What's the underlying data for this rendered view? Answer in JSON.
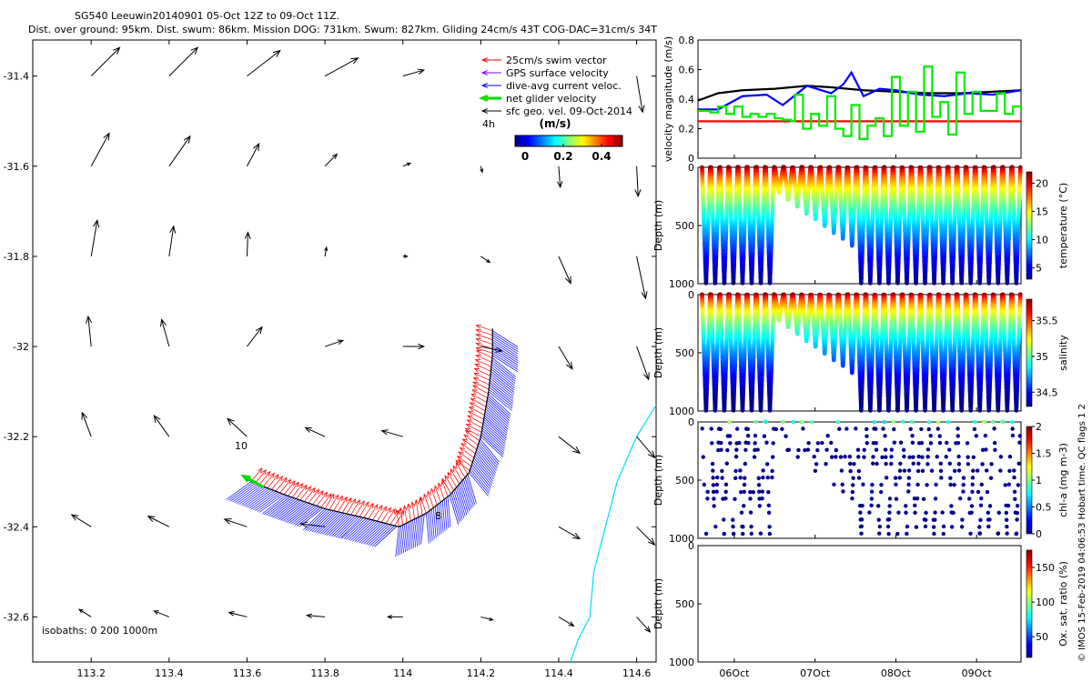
{
  "header": {
    "line1": "SG540 Leeuwin20140901 05-Oct 12Z to 09-Oct 11Z.",
    "line2": "Dist. over ground: 95km. Dist. swum: 86km. Mission DOG: 731km. Swum: 827km. Gliding 24cm/s 43T COG-DAC=31cm/s 34T"
  },
  "credit": "© IMOS 15-Feb-2019 04:06:53 Hobart time. QC flags 1  2",
  "colors": {
    "background": "#ffffff",
    "axis": "#000000",
    "swim": "#ff0000",
    "gps": "#8000ff",
    "dac": "#0000ff",
    "net": "#00dd00",
    "coast": "#00ddff",
    "geo": "#000000"
  },
  "chart_data": [
    {
      "type": "quiver-map",
      "xlim": [
        113.05,
        114.65
      ],
      "ylim": [
        -32.7,
        -31.32
      ],
      "xticks": [
        113.2,
        113.4,
        113.6,
        113.8,
        114,
        114.2,
        114.4,
        114.6
      ],
      "xtick_labels": [
        "113.2",
        "113.4",
        "113.6",
        "113.8",
        "114",
        "114.2",
        "114.4",
        "114.6"
      ],
      "yticks": [
        -31.4,
        -31.6,
        -31.8,
        -32,
        -32.2,
        -32.4,
        -32.6
      ],
      "ytick_labels": [
        "-31.4",
        "-31.6",
        "-31.8",
        "-32",
        "-32.2",
        "-32.4",
        "-32.6"
      ],
      "legend": {
        "items": [
          {
            "label": "25cm/s swim vector",
            "color": "#ff0000"
          },
          {
            "label": "GPS surface velocity",
            "color": "#8000ff"
          },
          {
            "label": "dive-avg current veloc.",
            "color": "#0000ff"
          },
          {
            "label": "net glider velocity",
            "color": "#00dd00"
          },
          {
            "label": "sfc geo. vel. 09-Oct-2014",
            "color": "#000000"
          }
        ],
        "scale_label": "4h",
        "colorbar_title": "(m/s)",
        "colorbar_ticks": [
          "0",
          "0.2",
          "0.4"
        ]
      },
      "isobaths_label": "isobaths: 0   200  1000m",
      "track_labels": [
        "10",
        "8"
      ],
      "geo_vectors": [
        {
          "lon": 113.2,
          "lat": -31.4,
          "u": 0.095,
          "v": 0.095
        },
        {
          "lon": 113.4,
          "lat": -31.4,
          "u": 0.095,
          "v": 0.095
        },
        {
          "lon": 113.6,
          "lat": -31.4,
          "u": 0.11,
          "v": 0.085
        },
        {
          "lon": 113.8,
          "lat": -31.4,
          "u": 0.11,
          "v": 0.06
        },
        {
          "lon": 114,
          "lat": -31.4,
          "u": 0.07,
          "v": 0.02
        },
        {
          "lon": 114.6,
          "lat": -31.4,
          "u": 0.02,
          "v": -0.12
        },
        {
          "lon": 113.2,
          "lat": -31.6,
          "u": 0.06,
          "v": 0.11
        },
        {
          "lon": 113.4,
          "lat": -31.6,
          "u": 0.07,
          "v": 0.1
        },
        {
          "lon": 113.6,
          "lat": -31.6,
          "u": 0.04,
          "v": 0.075
        },
        {
          "lon": 113.8,
          "lat": -31.6,
          "u": 0.04,
          "v": 0.04
        },
        {
          "lon": 114,
          "lat": -31.6,
          "u": 0.025,
          "v": 0.01
        },
        {
          "lon": 114.2,
          "lat": -31.6,
          "u": 0.005,
          "v": -0.02
        },
        {
          "lon": 114.4,
          "lat": -31.6,
          "u": 0.005,
          "v": -0.07
        },
        {
          "lon": 114.6,
          "lat": -31.6,
          "u": 0.005,
          "v": -0.1
        },
        {
          "lon": 113.2,
          "lat": -31.8,
          "u": 0.02,
          "v": 0.12
        },
        {
          "lon": 113.4,
          "lat": -31.8,
          "u": 0.015,
          "v": 0.1
        },
        {
          "lon": 113.6,
          "lat": -31.8,
          "u": 0.003,
          "v": 0.08
        },
        {
          "lon": 113.8,
          "lat": -31.8,
          "u": 0.005,
          "v": 0.03
        },
        {
          "lon": 114,
          "lat": -31.8,
          "u": 0.015,
          "v": 0.0
        },
        {
          "lon": 114.2,
          "lat": -31.8,
          "u": 0.03,
          "v": -0.02
        },
        {
          "lon": 114.4,
          "lat": -31.8,
          "u": 0.04,
          "v": -0.09
        },
        {
          "lon": 114.6,
          "lat": -31.8,
          "u": 0.03,
          "v": -0.14
        },
        {
          "lon": 113.2,
          "lat": -32,
          "u": -0.01,
          "v": 0.1
        },
        {
          "lon": 113.4,
          "lat": -32,
          "u": -0.025,
          "v": 0.09
        },
        {
          "lon": 113.6,
          "lat": -32,
          "u": 0.05,
          "v": 0.065
        },
        {
          "lon": 113.8,
          "lat": -32,
          "u": 0.06,
          "v": 0.02
        },
        {
          "lon": 114,
          "lat": -32,
          "u": 0.07,
          "v": 0.0
        },
        {
          "lon": 114.2,
          "lat": -32,
          "u": 0.07,
          "v": -0.015
        },
        {
          "lon": 114.4,
          "lat": -32,
          "u": 0.045,
          "v": -0.075
        },
        {
          "lon": 114.6,
          "lat": -32,
          "u": 0.04,
          "v": -0.11
        },
        {
          "lon": 113.2,
          "lat": -32.2,
          "u": -0.03,
          "v": 0.08
        },
        {
          "lon": 113.4,
          "lat": -32.2,
          "u": -0.05,
          "v": 0.07
        },
        {
          "lon": 113.6,
          "lat": -32.2,
          "u": -0.065,
          "v": 0.06
        },
        {
          "lon": 113.8,
          "lat": -32.2,
          "u": -0.065,
          "v": 0.03
        },
        {
          "lon": 114,
          "lat": -32.2,
          "u": -0.07,
          "v": 0.02
        },
        {
          "lon": 114.4,
          "lat": -32.2,
          "u": 0.07,
          "v": -0.055
        },
        {
          "lon": 114.6,
          "lat": -32.2,
          "u": 0.06,
          "v": -0.07
        },
        {
          "lon": 113.2,
          "lat": -32.4,
          "u": -0.065,
          "v": 0.04
        },
        {
          "lon": 113.4,
          "lat": -32.4,
          "u": -0.07,
          "v": 0.035
        },
        {
          "lon": 113.6,
          "lat": -32.4,
          "u": -0.075,
          "v": 0.025
        },
        {
          "lon": 113.8,
          "lat": -32.4,
          "u": -0.08,
          "v": 0.01
        },
        {
          "lon": 114.4,
          "lat": -32.4,
          "u": 0.07,
          "v": -0.04
        },
        {
          "lon": 114.6,
          "lat": -32.4,
          "u": 0.06,
          "v": -0.06
        },
        {
          "lon": 113.2,
          "lat": -32.6,
          "u": -0.04,
          "v": 0.025
        },
        {
          "lon": 113.4,
          "lat": -32.6,
          "u": -0.05,
          "v": 0.02
        },
        {
          "lon": 113.6,
          "lat": -32.6,
          "u": -0.06,
          "v": 0.015
        },
        {
          "lon": 113.8,
          "lat": -32.6,
          "u": -0.06,
          "v": 0.005
        },
        {
          "lon": 114,
          "lat": -32.6,
          "u": -0.05,
          "v": 0.0
        },
        {
          "lon": 114.2,
          "lat": -32.6,
          "u": 0.04,
          "v": -0.01
        },
        {
          "lon": 114.4,
          "lat": -32.6,
          "u": 0.05,
          "v": -0.03
        },
        {
          "lon": 114.6,
          "lat": -32.6,
          "u": 0.045,
          "v": -0.05
        }
      ],
      "track": [
        {
          "lon": 113.61,
          "lat": -32.3
        },
        {
          "lon": 113.7,
          "lat": -32.33
        },
        {
          "lon": 113.8,
          "lat": -32.36
        },
        {
          "lon": 113.9,
          "lat": -32.38
        },
        {
          "lon": 113.99,
          "lat": -32.4
        },
        {
          "lon": 114.06,
          "lat": -32.37
        },
        {
          "lon": 114.12,
          "lat": -32.33
        },
        {
          "lon": 114.17,
          "lat": -32.28
        },
        {
          "lon": 114.2,
          "lat": -32.2
        },
        {
          "lon": 114.22,
          "lat": -32.1
        },
        {
          "lon": 114.23,
          "lat": -32.02
        },
        {
          "lon": 114.23,
          "lat": -31.96
        }
      ],
      "coastline": [
        {
          "lon": 114.65,
          "lat": -32.13
        },
        {
          "lon": 114.6,
          "lat": -32.2
        },
        {
          "lon": 114.55,
          "lat": -32.3
        },
        {
          "lon": 114.52,
          "lat": -32.4
        },
        {
          "lon": 114.49,
          "lat": -32.5
        },
        {
          "lon": 114.48,
          "lat": -32.6
        },
        {
          "lon": 114.45,
          "lat": -32.65
        },
        {
          "lon": 114.43,
          "lat": -32.7
        }
      ]
    },
    {
      "type": "line",
      "ylabel": "velocity magnitude (m/s)",
      "ylim": [
        0,
        0.8
      ],
      "yticks": [
        "0",
        "0.2",
        "0.4",
        "0.6",
        "0.8"
      ],
      "xlim": [
        5.55,
        9.55
      ],
      "series": [
        {
          "color": "#ff0000",
          "x": [
            5.55,
            9.55
          ],
          "values": [
            0.25,
            0.25
          ]
        },
        {
          "color": "#000000",
          "x": [
            5.55,
            5.8,
            6.1,
            6.5,
            6.9,
            7.2,
            7.6,
            8.0,
            8.4,
            8.8,
            9.2,
            9.55
          ],
          "values": [
            0.39,
            0.44,
            0.46,
            0.47,
            0.49,
            0.48,
            0.46,
            0.45,
            0.44,
            0.44,
            0.45,
            0.46
          ]
        },
        {
          "color": "#0000ff",
          "x": [
            5.55,
            5.8,
            6.1,
            6.4,
            6.6,
            6.9,
            7.2,
            7.35,
            7.45,
            7.6,
            7.8,
            8.0,
            8.3,
            8.6,
            8.9,
            9.2,
            9.55
          ],
          "values": [
            0.33,
            0.33,
            0.42,
            0.43,
            0.36,
            0.49,
            0.44,
            0.5,
            0.58,
            0.42,
            0.47,
            0.46,
            0.43,
            0.42,
            0.44,
            0.43,
            0.46
          ]
        },
        {
          "color": "#00ee00",
          "x": [
            5.55,
            5.7,
            5.8,
            5.9,
            6.0,
            6.1,
            6.2,
            6.3,
            6.4,
            6.5,
            6.6,
            6.7,
            6.75,
            6.85,
            6.95,
            7.05,
            7.15,
            7.25,
            7.35,
            7.45,
            7.55,
            7.65,
            7.75,
            7.85,
            7.95,
            8.05,
            8.15,
            8.25,
            8.35,
            8.45,
            8.55,
            8.65,
            8.75,
            8.85,
            8.95,
            9.05,
            9.15,
            9.25,
            9.35,
            9.45,
            9.55
          ],
          "values": [
            0.32,
            0.31,
            0.35,
            0.3,
            0.35,
            0.28,
            0.3,
            0.28,
            0.3,
            0.27,
            0.26,
            0.25,
            0.43,
            0.2,
            0.3,
            0.22,
            0.42,
            0.2,
            0.15,
            0.36,
            0.13,
            0.22,
            0.27,
            0.15,
            0.55,
            0.22,
            0.45,
            0.18,
            0.62,
            0.28,
            0.38,
            0.16,
            0.58,
            0.3,
            0.45,
            0.32,
            0.32,
            0.44,
            0.3,
            0.35,
            0.33
          ]
        }
      ]
    },
    {
      "type": "scatter",
      "ylabel": "Depth (m)",
      "ylim": [
        0,
        1000
      ],
      "yticks": [
        "0",
        "500",
        "1000"
      ],
      "colorbar": {
        "label": "temperature (°C)",
        "ticks": [
          "5",
          "10",
          "15",
          "20"
        ],
        "range": [
          3,
          22
        ]
      }
    },
    {
      "type": "scatter",
      "ylabel": "Depth (m)",
      "ylim": [
        0,
        1000
      ],
      "yticks": [
        "0",
        "500",
        "1000"
      ],
      "colorbar": {
        "label": "salinity",
        "ticks": [
          "34.5",
          "35",
          "35.5"
        ],
        "range": [
          34.3,
          35.8
        ]
      }
    },
    {
      "type": "scatter",
      "ylabel": "Depth (m)",
      "ylim": [
        0,
        1000
      ],
      "yticks": [
        "0",
        "500",
        "1000"
      ],
      "colorbar": {
        "label": "chl-a (mg m-3)",
        "ticks": [
          "0",
          "0.5",
          "1",
          "1.5",
          "2"
        ],
        "range": [
          0,
          2
        ]
      }
    },
    {
      "type": "scatter",
      "ylabel": "Depth (m)",
      "ylim": [
        0,
        1000
      ],
      "yticks": [
        "0",
        "500",
        "1000"
      ],
      "colorbar": {
        "label": "Ox. sat. ratio (%)",
        "ticks": [
          "50",
          "100",
          "150"
        ],
        "range": [
          20,
          175
        ]
      }
    },
    {
      "type": "time-axis",
      "xlim": [
        5.55,
        9.55
      ],
      "xticks": [
        6.0,
        7.0,
        8.0,
        9.0
      ],
      "xtick_labels": [
        "06Oct",
        "07Oct",
        "08Oct",
        "09Oct"
      ]
    }
  ]
}
